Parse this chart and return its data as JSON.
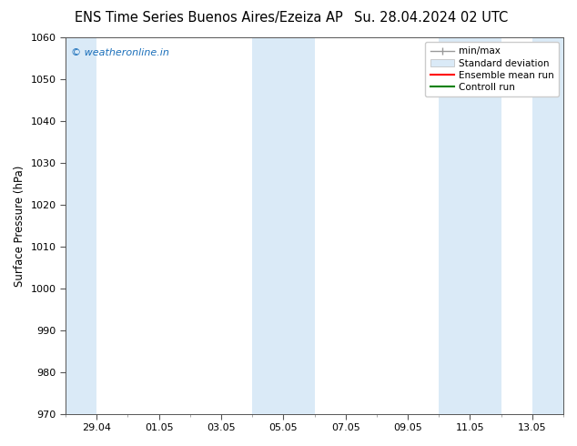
{
  "title_left": "ENS Time Series Buenos Aires/Ezeiza AP",
  "title_right": "Su. 28.04.2024 02 UTC",
  "ylabel": "Surface Pressure (hPa)",
  "ylim": [
    970,
    1060
  ],
  "yticks": [
    970,
    980,
    990,
    1000,
    1010,
    1020,
    1030,
    1040,
    1050,
    1060
  ],
  "xlim": [
    0,
    16
  ],
  "xtick_labels": [
    "29.04",
    "01.05",
    "03.05",
    "05.05",
    "07.05",
    "09.05",
    "11.05",
    "13.05"
  ],
  "xtick_positions": [
    1,
    3,
    5,
    7,
    9,
    11,
    13,
    15
  ],
  "shaded_bands": [
    {
      "x_start": 0,
      "x_end": 1,
      "color": "#daeaf7"
    },
    {
      "x_start": 6,
      "x_end": 8,
      "color": "#daeaf7"
    },
    {
      "x_start": 12,
      "x_end": 14,
      "color": "#daeaf7"
    },
    {
      "x_start": 15,
      "x_end": 16,
      "color": "#daeaf7"
    }
  ],
  "legend_entries": [
    {
      "label": "min/max",
      "color": "#aaaaaa",
      "type": "errorbar"
    },
    {
      "label": "Standard deviation",
      "color": "#daeaf7",
      "type": "box"
    },
    {
      "label": "Ensemble mean run",
      "color": "#ff0000",
      "type": "line"
    },
    {
      "label": "Controll run",
      "color": "#008000",
      "type": "line"
    }
  ],
  "watermark_text": "© weatheronline.in",
  "watermark_color": "#1a6fba",
  "background_color": "#ffffff",
  "plot_bg_color": "#ffffff",
  "title_fontsize": 10.5,
  "tick_fontsize": 8,
  "ylabel_fontsize": 8.5,
  "legend_fontsize": 7.5
}
